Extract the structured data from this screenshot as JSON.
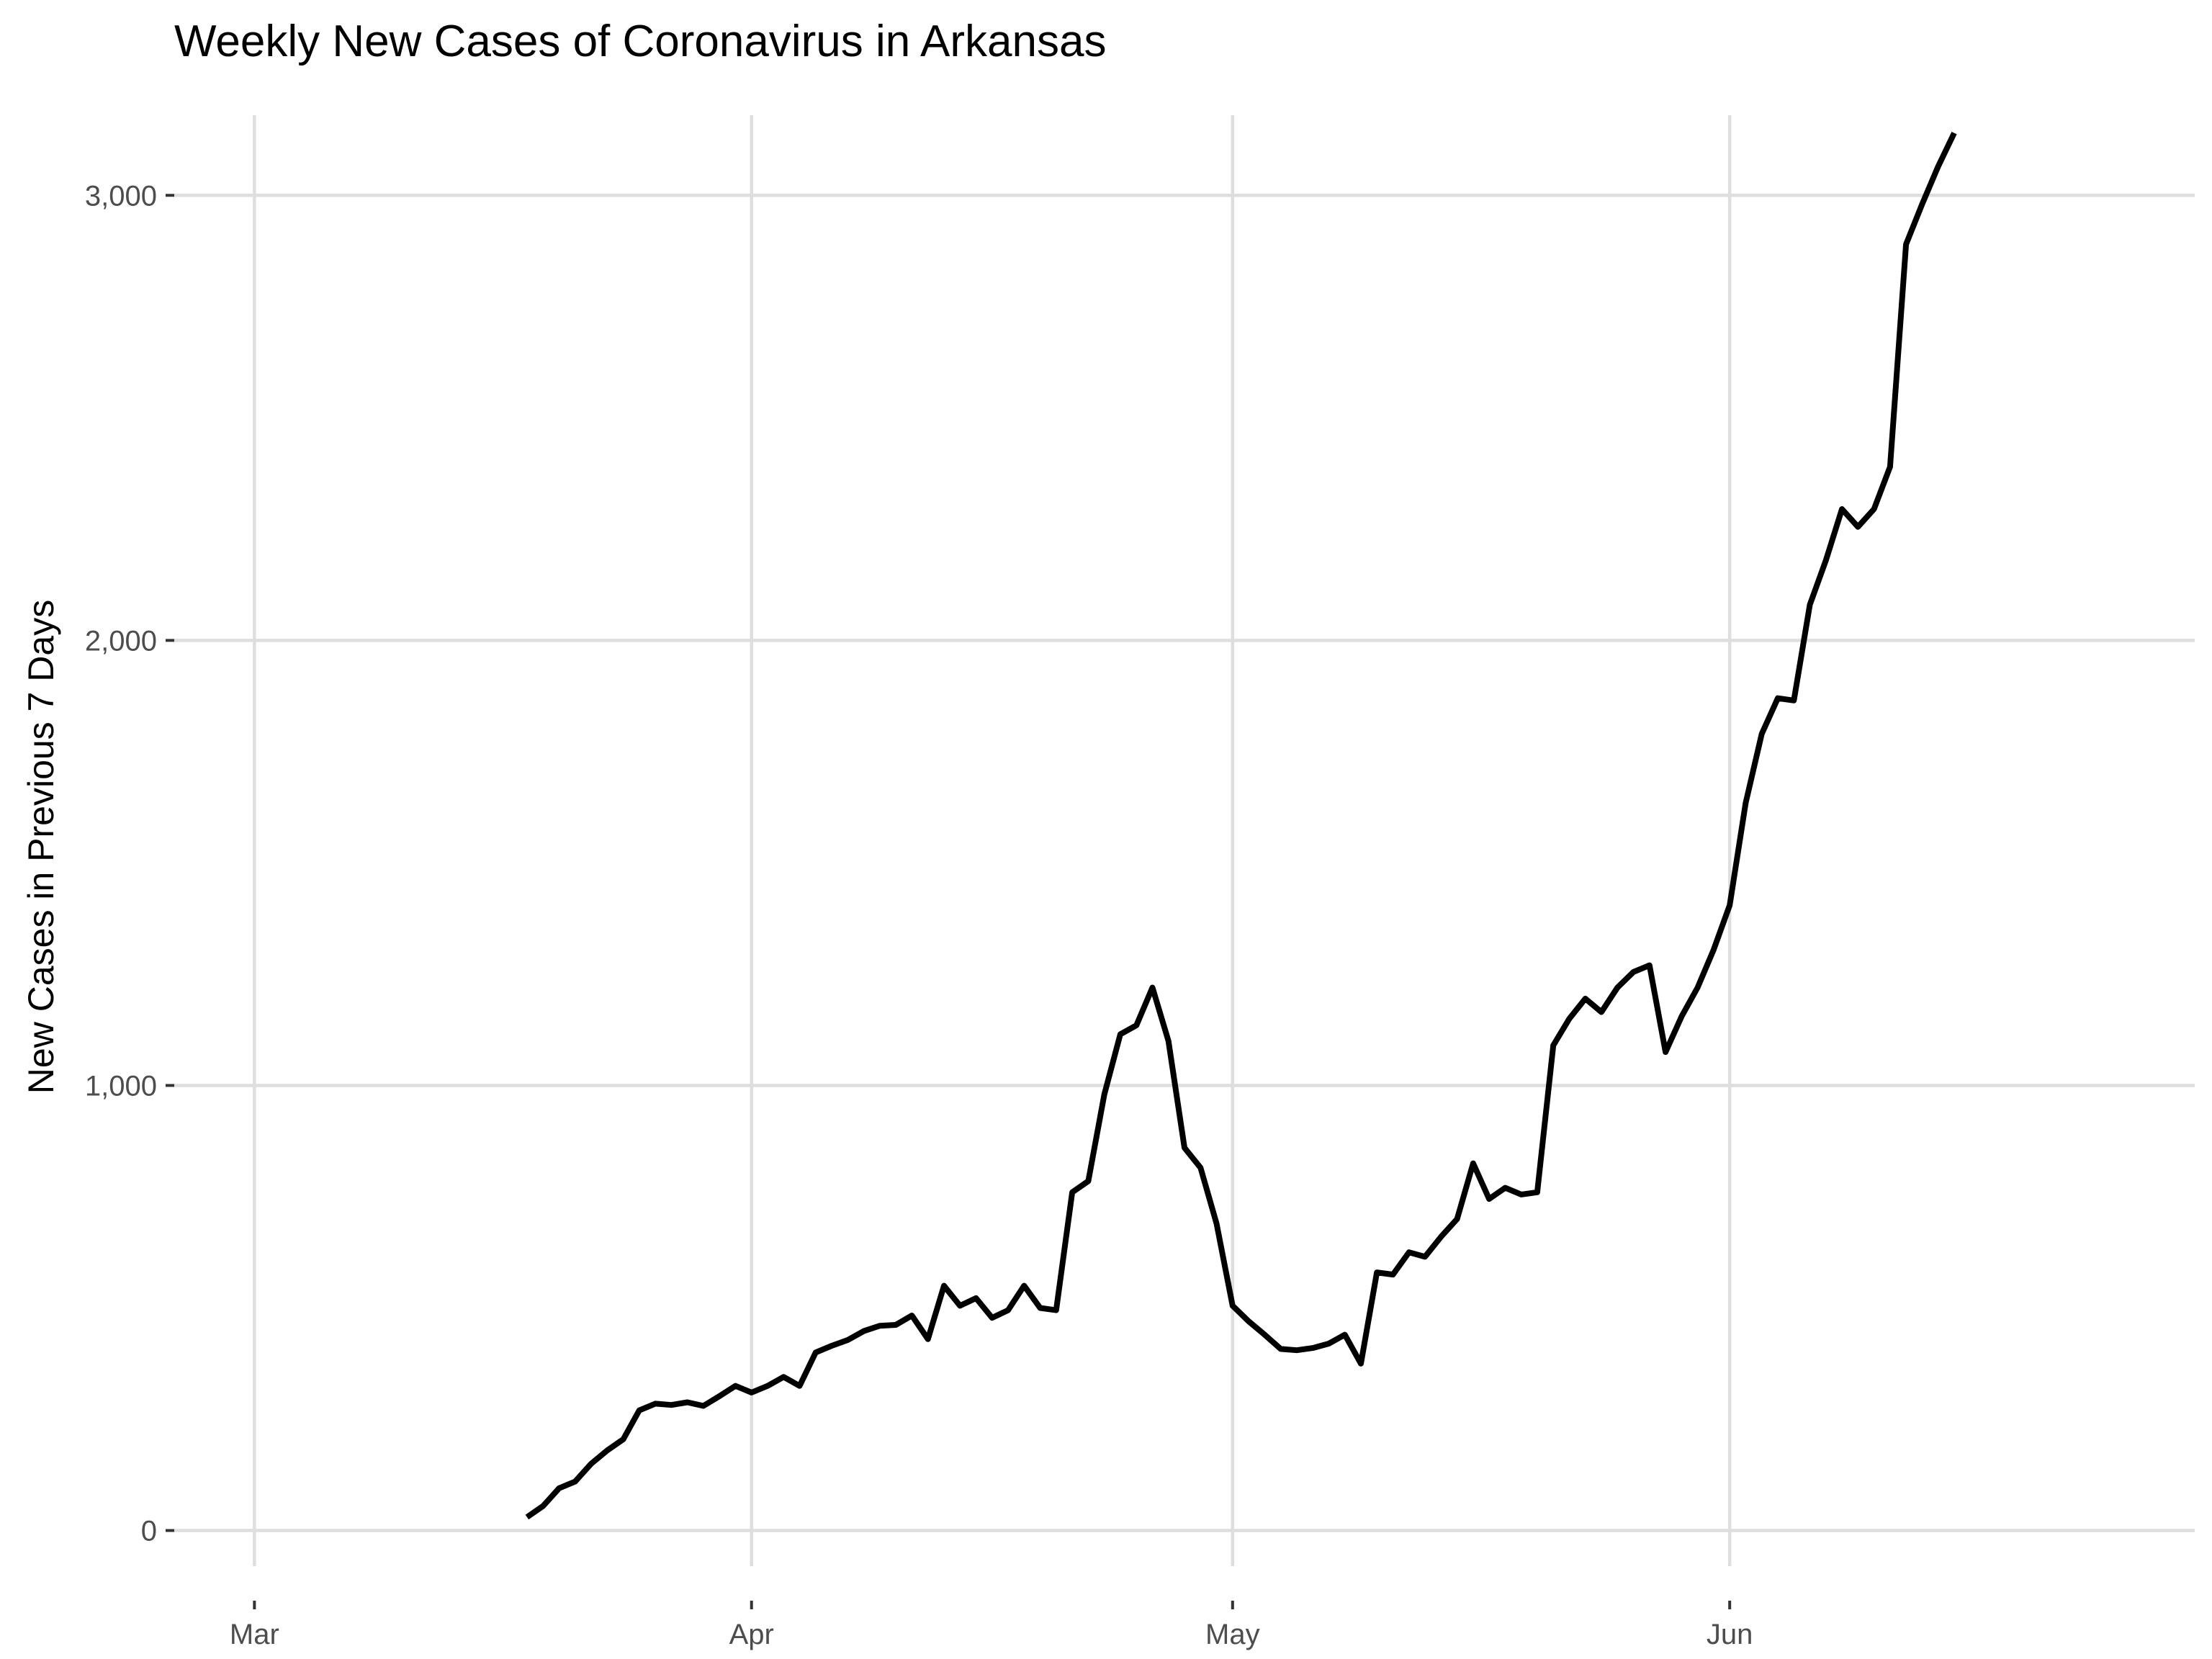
{
  "chart_data": {
    "type": "line",
    "title": "Weekly New Cases of Coronavirus in Arkansas",
    "xlabel": "",
    "ylabel": "New Cases in Previous 7 Days",
    "x_ticks": [
      {
        "date": "2020-03-01",
        "label": "Mar"
      },
      {
        "date": "2020-04-01",
        "label": "Apr"
      },
      {
        "date": "2020-05-01",
        "label": "May"
      },
      {
        "date": "2020-06-01",
        "label": "Jun"
      }
    ],
    "y_ticks": [
      {
        "value": 0,
        "label": "0"
      },
      {
        "value": 1000,
        "label": "1,000"
      },
      {
        "value": 2000,
        "label": "2,000"
      },
      {
        "value": 3000,
        "label": "3,000"
      }
    ],
    "xlim": [
      "2020-02-25",
      "2020-06-30"
    ],
    "ylim": [
      -80,
      3180
    ],
    "grid": true,
    "colors": {
      "line": "#000000",
      "grid": "#dedede",
      "tick_text": "#4d4d4d"
    },
    "series": [
      {
        "x": [
          "2020-03-18",
          "2020-03-19",
          "2020-03-20",
          "2020-03-21",
          "2020-03-22",
          "2020-03-23",
          "2020-03-24",
          "2020-03-25",
          "2020-03-26",
          "2020-03-27",
          "2020-03-28",
          "2020-03-29",
          "2020-03-30",
          "2020-03-31",
          "2020-04-01",
          "2020-04-02",
          "2020-04-03",
          "2020-04-04",
          "2020-04-05",
          "2020-04-06",
          "2020-04-07",
          "2020-04-08",
          "2020-04-09",
          "2020-04-10",
          "2020-04-11",
          "2020-04-12",
          "2020-04-13",
          "2020-04-14",
          "2020-04-15",
          "2020-04-16",
          "2020-04-17",
          "2020-04-18",
          "2020-04-19",
          "2020-04-20",
          "2020-04-21",
          "2020-04-22",
          "2020-04-23",
          "2020-04-24",
          "2020-04-25",
          "2020-04-26",
          "2020-04-27",
          "2020-04-28",
          "2020-04-29",
          "2020-04-30",
          "2020-05-01",
          "2020-05-02",
          "2020-05-03",
          "2020-05-04",
          "2020-05-05",
          "2020-05-06",
          "2020-05-07",
          "2020-05-08",
          "2020-05-09",
          "2020-05-10",
          "2020-05-11",
          "2020-05-12",
          "2020-05-13",
          "2020-05-14",
          "2020-05-15",
          "2020-05-16",
          "2020-05-17",
          "2020-05-18",
          "2020-05-19",
          "2020-05-20",
          "2020-05-21",
          "2020-05-22",
          "2020-05-23",
          "2020-05-24",
          "2020-05-25",
          "2020-05-26",
          "2020-05-27",
          "2020-05-28",
          "2020-05-29",
          "2020-05-30",
          "2020-05-31",
          "2020-06-01",
          "2020-06-02",
          "2020-06-03",
          "2020-06-04",
          "2020-06-05",
          "2020-06-06",
          "2020-06-07",
          "2020-06-08",
          "2020-06-09",
          "2020-06-10",
          "2020-06-11",
          "2020-06-12",
          "2020-06-13",
          "2020-06-14",
          "2020-06-15"
        ],
        "values": [
          30,
          55,
          95,
          110,
          150,
          180,
          205,
          270,
          285,
          282,
          288,
          280,
          302,
          325,
          310,
          325,
          345,
          325,
          400,
          415,
          428,
          448,
          460,
          462,
          483,
          430,
          550,
          505,
          522,
          478,
          495,
          550,
          500,
          495,
          760,
          785,
          980,
          1115,
          1135,
          1220,
          1100,
          860,
          815,
          690,
          505,
          470,
          440,
          408,
          405,
          410,
          420,
          440,
          375,
          580,
          575,
          625,
          615,
          660,
          700,
          825,
          745,
          770,
          755,
          760,
          1090,
          1150,
          1195,
          1165,
          1220,
          1255,
          1270,
          1075,
          1155,
          1220,
          1305,
          1405,
          1635,
          1790,
          1870,
          1865,
          2080,
          2180,
          2295,
          2255,
          2295,
          2390,
          2890,
          2980,
          3065,
          3140
        ]
      }
    ]
  }
}
